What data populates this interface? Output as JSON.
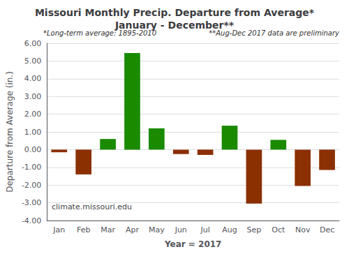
{
  "chart_data": {
    "type": "bar",
    "title": "Missouri Monthly Precip. Departure from Average*\nJanuary - December**",
    "xlabel": "Year = 2017",
    "ylabel": "Departure from Average (in.)",
    "annotations": [
      "*Long-term average: 1895-2010",
      "**Aug-Dec 2017 data are preliminary",
      "climate.missouri.edu"
    ],
    "categories": [
      "Jan",
      "Feb",
      "Mar",
      "Apr",
      "May",
      "Jun",
      "Jul",
      "Aug",
      "Sep",
      "Oct",
      "Nov",
      "Dec"
    ],
    "values": [
      -0.15,
      -1.4,
      0.6,
      5.45,
      1.2,
      -0.25,
      -0.3,
      1.35,
      -3.05,
      0.55,
      -2.05,
      -1.15
    ],
    "colors": [
      "#8B3000",
      "#8B3000",
      "#1a8a00",
      "#1a8a00",
      "#1a8a00",
      "#8B3000",
      "#8B3000",
      "#1a8a00",
      "#8B3000",
      "#1a8a00",
      "#8B3000",
      "#8B3000"
    ],
    "ylim": [
      -4.0,
      6.0
    ],
    "yticks": [
      {
        "value": -4,
        "label": "-4.00"
      },
      {
        "value": -3,
        "label": "-3.00"
      },
      {
        "value": -2,
        "label": "-2.00"
      },
      {
        "value": -1,
        "label": "-1.00"
      },
      {
        "value": 0,
        "label": "0.00"
      },
      {
        "value": 1,
        "label": "1.00"
      },
      {
        "value": 2,
        "label": "2.00"
      },
      {
        "value": 3,
        "label": "3.00"
      },
      {
        "value": 4,
        "label": "4.00"
      },
      {
        "value": 5,
        "label": "5.00"
      },
      {
        "value": 6,
        "label": "6.00"
      }
    ],
    "grid": true
  }
}
